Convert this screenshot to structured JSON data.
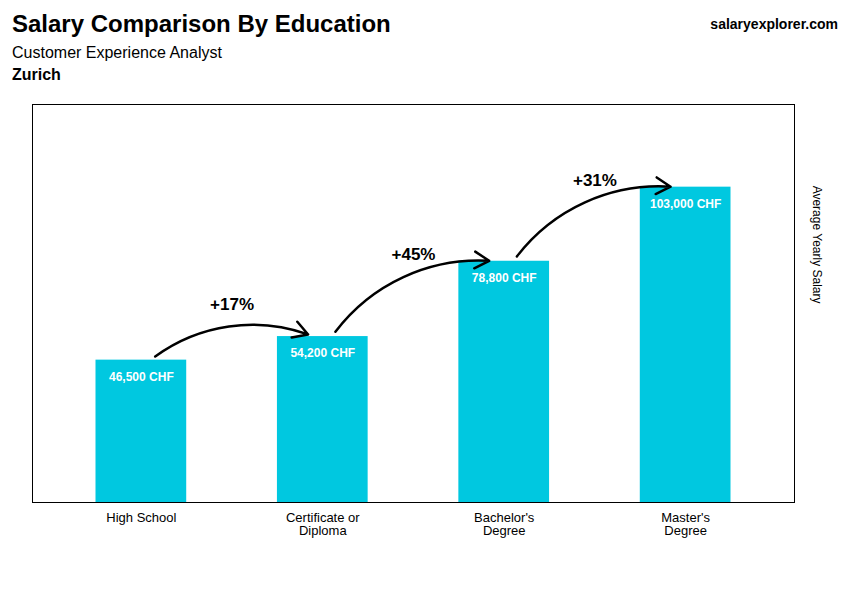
{
  "chart_data": {
    "type": "bar",
    "title": "Salary Comparison By Education",
    "subtitle": "Customer Experience Analyst",
    "city": "Zurich",
    "logo": "salaryexplorer.com",
    "ylabel": "Average Yearly Salary",
    "categories": [
      "High School",
      "Certificate or\nDiploma",
      "Bachelor's\nDegree",
      "Master's\nDegree"
    ],
    "values": [
      46500,
      54200,
      78800,
      103000
    ],
    "value_labels": [
      "46,500 CHF",
      "54,200 CHF",
      "78,800 CHF",
      "103,000 CHF"
    ],
    "data_labels": true,
    "color": "#00c8e0",
    "ylim": [
      0,
      130000
    ],
    "tick_labels": "x",
    "grid": false,
    "annotations": [
      "+17%",
      "+45%",
      "+31%"
    ]
  }
}
